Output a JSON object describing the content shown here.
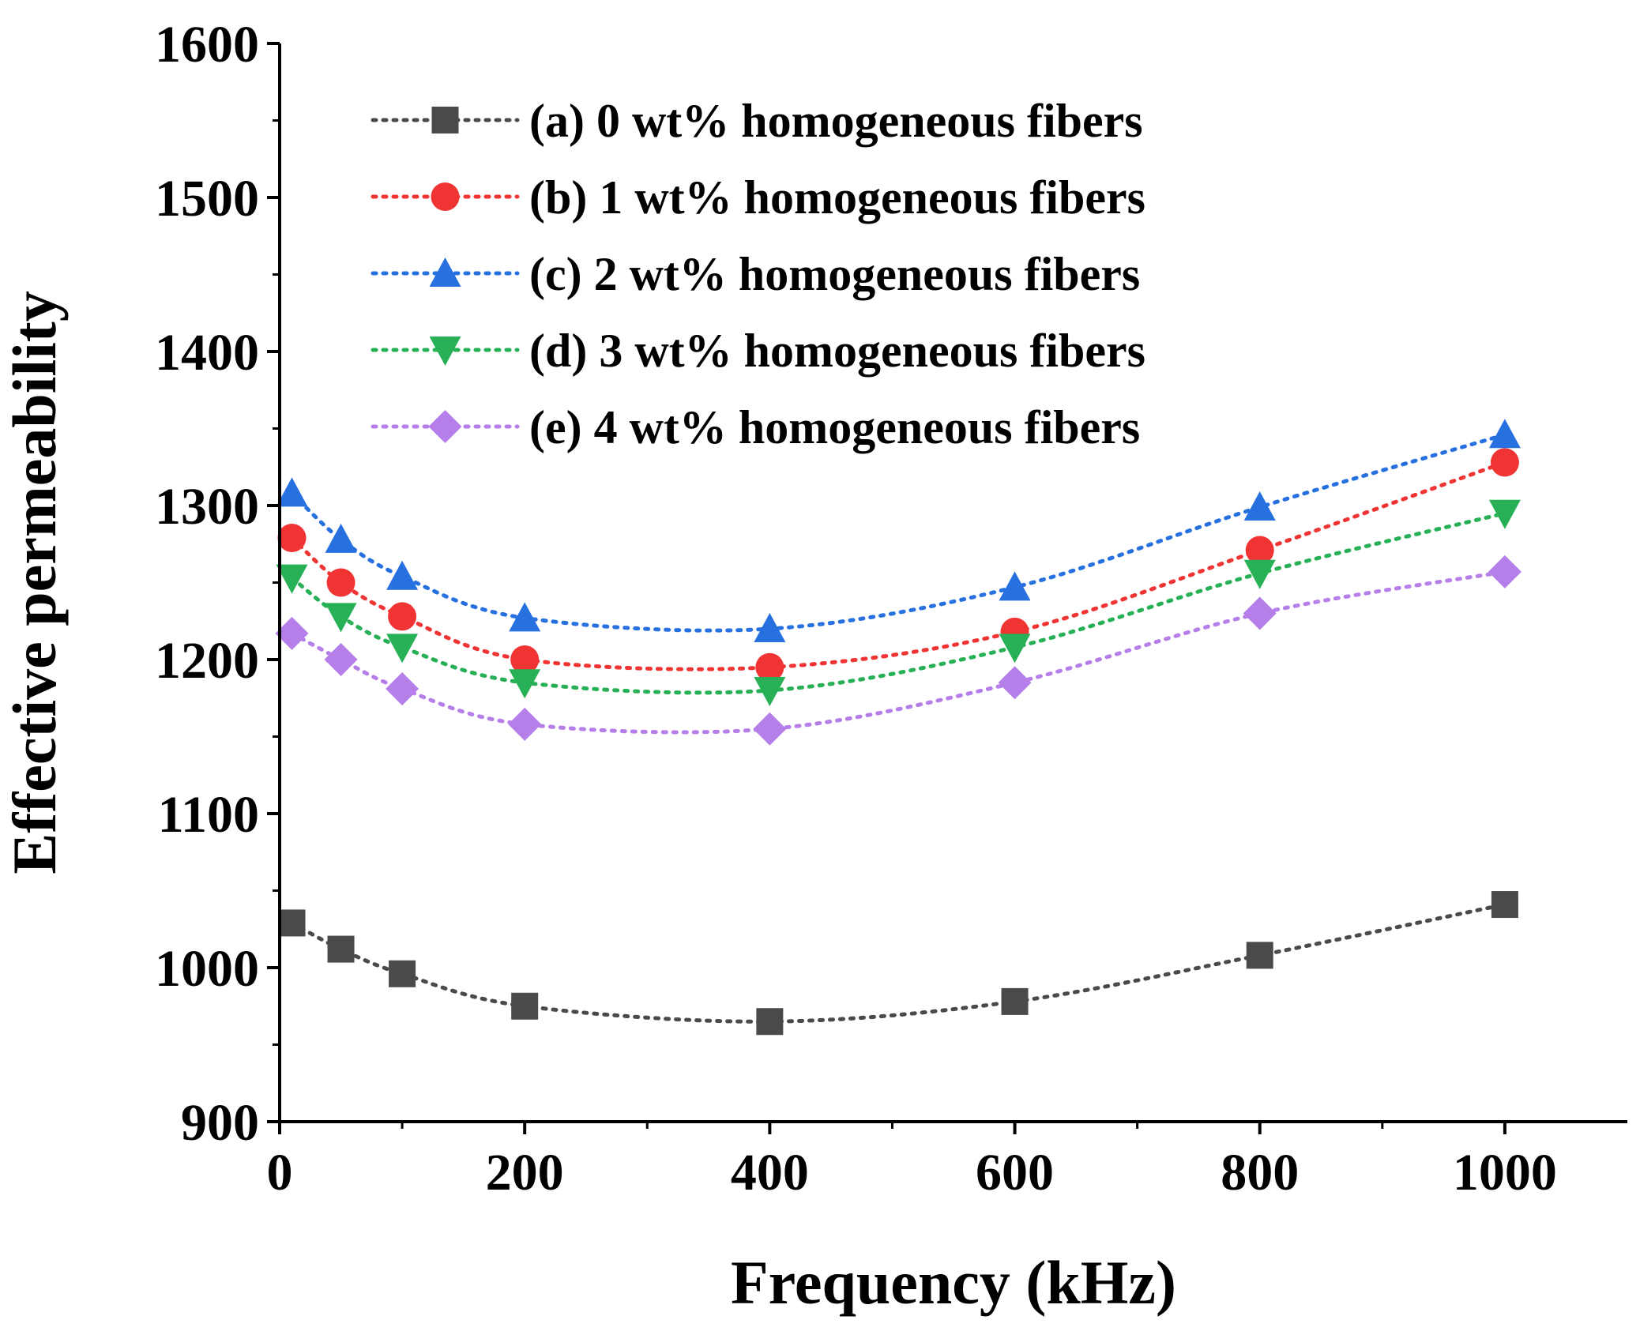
{
  "chart_data": {
    "type": "line",
    "title": "",
    "xlabel": "Frequency (kHz)",
    "ylabel": "Effective permeability",
    "xlim": [
      0,
      1100
    ],
    "ylim": [
      900,
      1600
    ],
    "xticks": [
      0,
      200,
      400,
      600,
      800,
      1000
    ],
    "xtick_labels": [
      "0",
      "200",
      "400",
      "600",
      "800",
      "1000"
    ],
    "yticks": [
      900,
      1000,
      1100,
      1200,
      1300,
      1400,
      1500,
      1600
    ],
    "ytick_labels": [
      "900",
      "1000",
      "1100",
      "1200",
      "1300",
      "1400",
      "1500",
      "1600"
    ],
    "legend_position": "top-center",
    "x": [
      10,
      50,
      100,
      200,
      400,
      600,
      800,
      1000
    ],
    "series": [
      {
        "name": "(a) 0 wt% homogeneous fibers",
        "marker": "square",
        "color": "#4a4a4a",
        "values": [
          1029,
          1012,
          996,
          975,
          965,
          978,
          1008,
          1041
        ]
      },
      {
        "name": "(b) 1 wt% homogeneous fibers",
        "marker": "circle",
        "color": "#f03434",
        "values": [
          1279,
          1250,
          1228,
          1200,
          1195,
          1218,
          1271,
          1328
        ]
      },
      {
        "name": "(c) 2 wt% homogeneous fibers",
        "marker": "triangle-up",
        "color": "#2670e0",
        "values": [
          1308,
          1278,
          1254,
          1227,
          1220,
          1247,
          1299,
          1346
        ]
      },
      {
        "name": "(d) 3 wt% homogeneous fibers",
        "marker": "triangle-down",
        "color": "#27b055",
        "values": [
          1253,
          1228,
          1208,
          1185,
          1180,
          1208,
          1256,
          1295
        ]
      },
      {
        "name": "(e) 4 wt% homogeneous fibers",
        "marker": "diamond",
        "color": "#b57ee8",
        "values": [
          1217,
          1200,
          1181,
          1158,
          1155,
          1185,
          1230,
          1257
        ]
      }
    ]
  }
}
